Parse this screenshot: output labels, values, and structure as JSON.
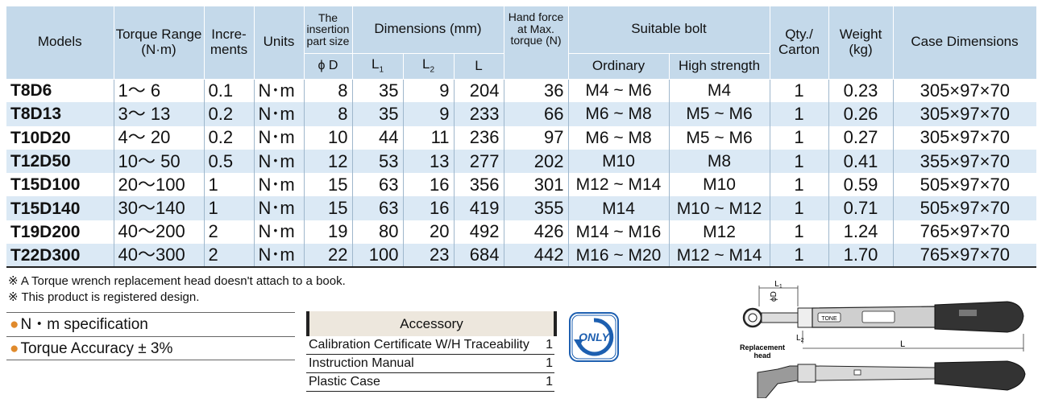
{
  "table": {
    "headers": {
      "models": "Models",
      "torque_range": "Torque Range (N·m)",
      "increments": "Incre- ments",
      "units": "Units",
      "insertion_line1": "The insertion part size",
      "insertion_line2": "ϕ D",
      "dimensions": "Dimensions (mm)",
      "dim_l1": "L",
      "dim_l1_sub": "1",
      "dim_l2": "L",
      "dim_l2_sub": "2",
      "dim_l": "L",
      "hand_force": "Hand force at Max. torque (N)",
      "suitable_bolt": "Suitable bolt",
      "bolt_ordinary": "Ordinary",
      "bolt_high": "High strength",
      "qty": "Qty./ Carton",
      "weight": "Weight (kg)",
      "case_dimensions": "Case Dimensions"
    },
    "rows": [
      {
        "model": "T8D6",
        "range": "1～  6",
        "increment": "0.1",
        "unit": "N･m",
        "phi_d": "8",
        "l1": "35",
        "l2": "9",
        "l": "204",
        "hand_force": "36",
        "bolt_ordinary": "M4 ~ M6",
        "bolt_high": "M4",
        "qty": "1",
        "weight": "0.23",
        "case": "305×97×70"
      },
      {
        "model": "T8D13",
        "range": "3～ 13",
        "increment": "0.2",
        "unit": "N･m",
        "phi_d": "8",
        "l1": "35",
        "l2": "9",
        "l": "233",
        "hand_force": "66",
        "bolt_ordinary": "M6 ~ M8",
        "bolt_high": "M5 ~ M6",
        "qty": "1",
        "weight": "0.26",
        "case": "305×97×70"
      },
      {
        "model": "T10D20",
        "range": "4～ 20",
        "increment": "0.2",
        "unit": "N･m",
        "phi_d": "10",
        "l1": "44",
        "l2": "11",
        "l": "236",
        "hand_force": "97",
        "bolt_ordinary": "M6 ~ M8",
        "bolt_high": "M5 ~ M6",
        "qty": "1",
        "weight": "0.27",
        "case": "305×97×70"
      },
      {
        "model": "T12D50",
        "range": "10～ 50",
        "increment": "0.5",
        "unit": "N･m",
        "phi_d": "12",
        "l1": "53",
        "l2": "13",
        "l": "277",
        "hand_force": "202",
        "bolt_ordinary": "M10",
        "bolt_high": "M8",
        "qty": "1",
        "weight": "0.41",
        "case": "355×97×70"
      },
      {
        "model": "T15D100",
        "range": "20～100",
        "increment": "1",
        "unit": "N･m",
        "phi_d": "15",
        "l1": "63",
        "l2": "16",
        "l": "356",
        "hand_force": "301",
        "bolt_ordinary": "M12 ~ M14",
        "bolt_high": "M10",
        "qty": "1",
        "weight": "0.59",
        "case": "505×97×70"
      },
      {
        "model": "T15D140",
        "range": "30～140",
        "increment": "1",
        "unit": "N･m",
        "phi_d": "15",
        "l1": "63",
        "l2": "16",
        "l": "419",
        "hand_force": "355",
        "bolt_ordinary": "M14",
        "bolt_high": "M10 ~ M12",
        "qty": "1",
        "weight": "0.71",
        "case": "505×97×70"
      },
      {
        "model": "T19D200",
        "range": "40～200",
        "increment": "2",
        "unit": "N･m",
        "phi_d": "19",
        "l1": "80",
        "l2": "20",
        "l": "492",
        "hand_force": "426",
        "bolt_ordinary": "M14 ~ M16",
        "bolt_high": "M12",
        "qty": "1",
        "weight": "1.24",
        "case": "765×97×70"
      },
      {
        "model": "T22D300",
        "range": "40～300",
        "increment": "2",
        "unit": "N･m",
        "phi_d": "22",
        "l1": "100",
        "l2": "23",
        "l": "684",
        "hand_force": "442",
        "bolt_ordinary": "M16 ~ M20",
        "bolt_high": "M12 ~ M14",
        "qty": "1",
        "weight": "1.70",
        "case": "765×97×70"
      }
    ]
  },
  "notes": [
    "※ A Torque wrench replacement head doesn't attach to a book.",
    "※ This product is registered design."
  ],
  "specs": [
    {
      "bullet": "●",
      "text": "N・m specification"
    },
    {
      "bullet": "●",
      "text": "Torque Accuracy ± 3%"
    }
  ],
  "accessory": {
    "title": "Accessory",
    "items": [
      {
        "name": "Calibration Certificate W/H Traceability",
        "qty": "1"
      },
      {
        "name": "Instruction Manual",
        "qty": "1"
      },
      {
        "name": "Plastic Case",
        "qty": "1"
      }
    ]
  },
  "badge": {
    "text": "ONLY",
    "icon": "only-rotate-icon",
    "color": "#1d5fb0"
  },
  "diagram": {
    "label_l1": "L",
    "label_l1_sub": "1",
    "label_phi_d": "ϕD",
    "label_l2": "L",
    "label_l2_sub": "2",
    "label_l": "L",
    "label_replacement": "Replacement",
    "label_head": "head",
    "brand_text": "TONE"
  },
  "colors": {
    "header_bg": "#c4d9ea",
    "alt_row_bg": "#dbe9f5",
    "bullet": "#e08a2c",
    "accessory_bg": "#ede7dd"
  }
}
